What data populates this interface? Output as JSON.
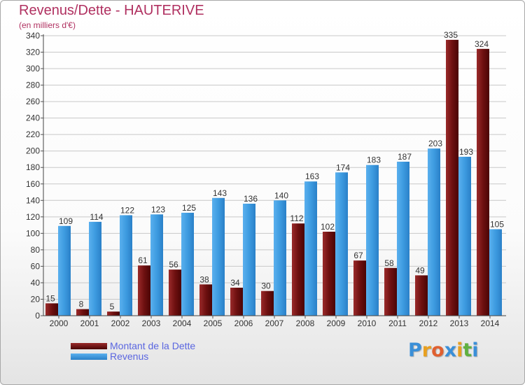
{
  "chart_data": {
    "type": "bar",
    "title": "Revenus/Dette - HAUTERIVE",
    "subtitle": "(en milliers d'€)",
    "categories": [
      "2000",
      "2001",
      "2002",
      "2003",
      "2004",
      "2005",
      "2006",
      "2007",
      "2008",
      "2009",
      "2010",
      "2011",
      "2012",
      "2013",
      "2014"
    ],
    "series": [
      {
        "name": "Montant de la Dette",
        "color": "#7a1515",
        "values": [
          15,
          8,
          5,
          61,
          56,
          38,
          34,
          30,
          112,
          102,
          67,
          58,
          49,
          335,
          324
        ]
      },
      {
        "name": "Revenus",
        "color": "#3d9be0",
        "values": [
          109,
          114,
          122,
          123,
          125,
          143,
          136,
          140,
          163,
          174,
          183,
          187,
          203,
          193,
          105
        ]
      }
    ],
    "ylim": [
      0,
      340
    ],
    "yticks": [
      0,
      20,
      40,
      60,
      80,
      100,
      120,
      140,
      160,
      180,
      200,
      220,
      240,
      260,
      280,
      300,
      320,
      340
    ],
    "grid": true,
    "legend_position": "bottom-left"
  },
  "logo": {
    "letters": [
      "P",
      "r",
      "o",
      "x",
      "i",
      "t",
      "i"
    ],
    "colors": [
      "#3a8fd8",
      "#e8a020",
      "#e06030",
      "#3a8fd8",
      "#e8a020",
      "#60b040",
      "#3a8fd8"
    ]
  }
}
